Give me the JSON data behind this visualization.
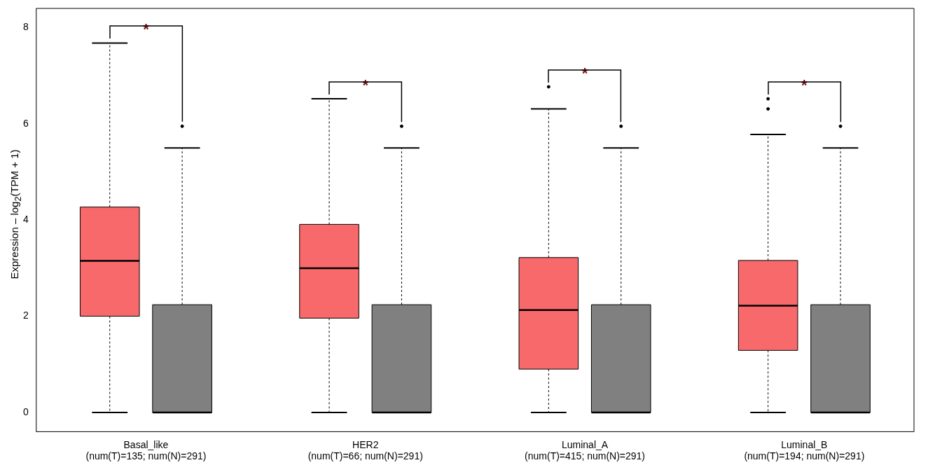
{
  "chart_data": {
    "type": "box",
    "ylabel": "Expression – log$_{2}$(TPM + 1)",
    "categories": [
      "Basal_like\n(num(T)=135; num(N)=291)",
      "HER2\n(num(T)=66; num(N)=291)",
      "Luminal_A\n(num(T)=415; num(N)=291)",
      "Luminal_B\n(num(T)=194; num(N)=291)"
    ],
    "series": [
      {
        "color": "#f8696b",
        "boxes": [
          {
            "low": 0,
            "q1": 2.0,
            "median": 3.15,
            "q3": 4.27,
            "high": 7.68
          },
          {
            "low": 0,
            "q1": 1.96,
            "median": 3.0,
            "q3": 3.91,
            "high": 6.52
          },
          {
            "low": 0,
            "q1": 0.9,
            "median": 2.13,
            "q3": 3.22,
            "high": 6.31,
            "outliers": [
              6.77
            ]
          },
          {
            "low": 0,
            "q1": 1.29,
            "median": 2.22,
            "q3": 3.16,
            "high": 5.78,
            "outliers": [
              6.52,
              6.31
            ]
          }
        ]
      },
      {
        "color": "#808080",
        "boxes": [
          {
            "low": 0,
            "q1": 0,
            "median": 0,
            "q3": 2.24,
            "high": 5.5,
            "outliers": [
              5.95
            ]
          },
          {
            "low": 0,
            "q1": 0,
            "median": 0,
            "q3": 2.24,
            "high": 5.5,
            "outliers": [
              5.95
            ]
          },
          {
            "low": 0,
            "q1": 0,
            "median": 0,
            "q3": 2.24,
            "high": 5.5,
            "outliers": [
              5.95
            ]
          },
          {
            "low": 0,
            "q1": 0,
            "median": 0,
            "q3": 2.24,
            "high": 5.5,
            "outliers": [
              5.95
            ]
          }
        ]
      }
    ],
    "annotations": [
      "*",
      "*",
      "*",
      "*"
    ],
    "ylim": [
      -0.4,
      8.4
    ],
    "yticks": [
      0,
      2,
      4,
      6,
      8
    ],
    "grid": false,
    "legend": false
  }
}
